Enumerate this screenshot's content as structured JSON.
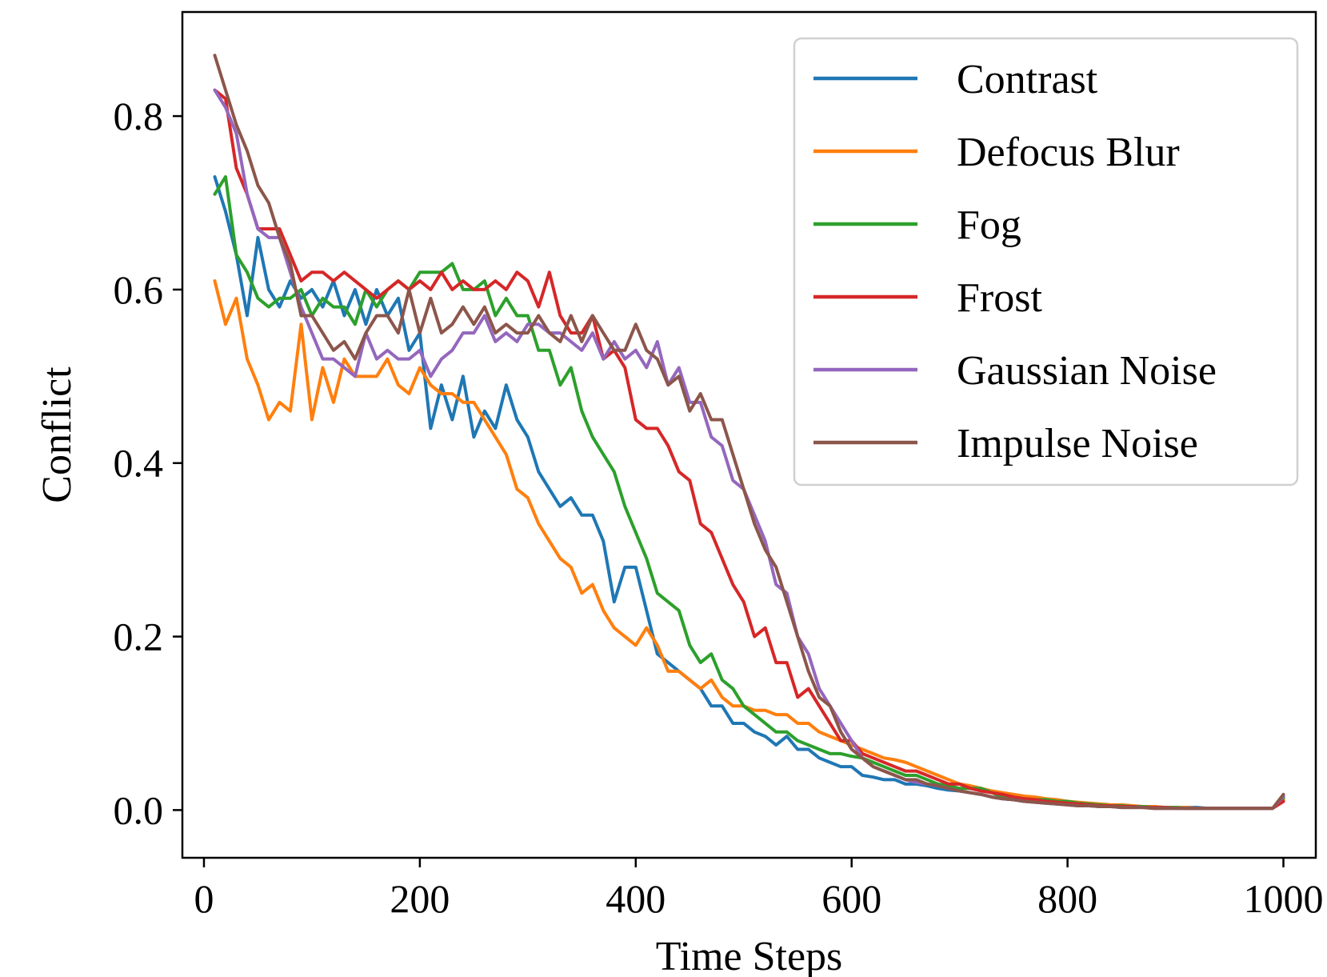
{
  "chart_data": {
    "type": "line",
    "title": "",
    "xlabel": "Time Steps",
    "ylabel": "Conflict",
    "xlim": [
      -20,
      1030
    ],
    "ylim": [
      -0.055,
      0.92
    ],
    "xticks": [
      0,
      200,
      400,
      600,
      800,
      1000
    ],
    "xtick_labels": [
      "0",
      "200",
      "400",
      "600",
      "800",
      "1000"
    ],
    "yticks": [
      0.0,
      0.2,
      0.4,
      0.6,
      0.8
    ],
    "ytick_labels": [
      "0.0",
      "0.2",
      "0.4",
      "0.6",
      "0.8"
    ],
    "grid": false,
    "legend_position": "top-right",
    "x": [
      10,
      20,
      30,
      40,
      50,
      60,
      70,
      80,
      90,
      100,
      110,
      120,
      130,
      140,
      150,
      160,
      170,
      180,
      190,
      200,
      210,
      220,
      230,
      240,
      250,
      260,
      270,
      280,
      290,
      300,
      310,
      320,
      330,
      340,
      350,
      360,
      370,
      380,
      390,
      400,
      410,
      420,
      430,
      440,
      450,
      460,
      470,
      480,
      490,
      500,
      510,
      520,
      530,
      540,
      550,
      560,
      570,
      580,
      590,
      600,
      610,
      620,
      630,
      640,
      650,
      660,
      670,
      680,
      690,
      700,
      710,
      720,
      730,
      740,
      750,
      760,
      770,
      780,
      790,
      800,
      810,
      820,
      830,
      840,
      850,
      860,
      870,
      880,
      890,
      900,
      910,
      920,
      930,
      940,
      950,
      960,
      970,
      980,
      990,
      1000
    ],
    "series": [
      {
        "name": "Contrast",
        "color": "#1f77b4",
        "values": [
          0.73,
          0.69,
          0.64,
          0.57,
          0.66,
          0.6,
          0.58,
          0.61,
          0.59,
          0.6,
          0.58,
          0.61,
          0.57,
          0.6,
          0.56,
          0.6,
          0.57,
          0.59,
          0.53,
          0.55,
          0.44,
          0.49,
          0.45,
          0.5,
          0.43,
          0.46,
          0.44,
          0.49,
          0.45,
          0.43,
          0.39,
          0.37,
          0.35,
          0.36,
          0.34,
          0.34,
          0.31,
          0.24,
          0.28,
          0.28,
          0.23,
          0.18,
          0.17,
          0.16,
          0.15,
          0.14,
          0.12,
          0.12,
          0.1,
          0.1,
          0.09,
          0.085,
          0.075,
          0.085,
          0.07,
          0.07,
          0.06,
          0.055,
          0.05,
          0.05,
          0.04,
          0.038,
          0.035,
          0.035,
          0.03,
          0.03,
          0.028,
          0.025,
          0.023,
          0.022,
          0.02,
          0.018,
          0.015,
          0.013,
          0.012,
          0.01,
          0.01,
          0.009,
          0.008,
          0.008,
          0.007,
          0.006,
          0.006,
          0.005,
          0.005,
          0.004,
          0.004,
          0.004,
          0.003,
          0.003,
          0.003,
          0.003,
          0.002,
          0.002,
          0.002,
          0.002,
          0.002,
          0.002,
          0.002,
          0.015
        ]
      },
      {
        "name": "Defocus Blur",
        "color": "#ff7f0e",
        "values": [
          0.61,
          0.56,
          0.59,
          0.52,
          0.49,
          0.45,
          0.47,
          0.46,
          0.56,
          0.45,
          0.51,
          0.47,
          0.52,
          0.5,
          0.5,
          0.5,
          0.52,
          0.49,
          0.48,
          0.51,
          0.49,
          0.48,
          0.48,
          0.47,
          0.47,
          0.45,
          0.43,
          0.41,
          0.37,
          0.36,
          0.33,
          0.31,
          0.29,
          0.28,
          0.25,
          0.26,
          0.23,
          0.21,
          0.2,
          0.19,
          0.21,
          0.19,
          0.16,
          0.16,
          0.15,
          0.14,
          0.15,
          0.13,
          0.12,
          0.12,
          0.115,
          0.115,
          0.11,
          0.11,
          0.1,
          0.1,
          0.09,
          0.085,
          0.08,
          0.075,
          0.07,
          0.065,
          0.06,
          0.058,
          0.055,
          0.05,
          0.045,
          0.04,
          0.035,
          0.03,
          0.028,
          0.025,
          0.022,
          0.02,
          0.018,
          0.016,
          0.015,
          0.013,
          0.012,
          0.01,
          0.009,
          0.008,
          0.007,
          0.006,
          0.006,
          0.005,
          0.004,
          0.004,
          0.003,
          0.003,
          0.003,
          0.002,
          0.002,
          0.002,
          0.002,
          0.002,
          0.002,
          0.002,
          0.002,
          0.012
        ]
      },
      {
        "name": "Fog",
        "color": "#2ca02c",
        "values": [
          0.71,
          0.73,
          0.64,
          0.62,
          0.59,
          0.58,
          0.59,
          0.59,
          0.6,
          0.57,
          0.59,
          0.58,
          0.58,
          0.56,
          0.6,
          0.58,
          0.6,
          0.61,
          0.6,
          0.62,
          0.62,
          0.62,
          0.63,
          0.6,
          0.6,
          0.61,
          0.57,
          0.59,
          0.57,
          0.57,
          0.53,
          0.53,
          0.49,
          0.51,
          0.46,
          0.43,
          0.41,
          0.39,
          0.35,
          0.32,
          0.29,
          0.25,
          0.24,
          0.23,
          0.19,
          0.17,
          0.18,
          0.15,
          0.14,
          0.12,
          0.11,
          0.1,
          0.09,
          0.09,
          0.08,
          0.075,
          0.07,
          0.065,
          0.065,
          0.062,
          0.06,
          0.055,
          0.05,
          0.045,
          0.04,
          0.04,
          0.035,
          0.03,
          0.028,
          0.025,
          0.025,
          0.025,
          0.02,
          0.015,
          0.014,
          0.013,
          0.012,
          0.012,
          0.01,
          0.01,
          0.008,
          0.007,
          0.006,
          0.005,
          0.005,
          0.004,
          0.004,
          0.003,
          0.003,
          0.003,
          0.002,
          0.002,
          0.002,
          0.002,
          0.002,
          0.002,
          0.002,
          0.002,
          0.002,
          0.014
        ]
      },
      {
        "name": "Frost",
        "color": "#d62728",
        "values": [
          0.83,
          0.82,
          0.74,
          0.71,
          0.67,
          0.67,
          0.67,
          0.64,
          0.61,
          0.62,
          0.62,
          0.61,
          0.62,
          0.61,
          0.6,
          0.59,
          0.6,
          0.61,
          0.6,
          0.61,
          0.6,
          0.62,
          0.6,
          0.61,
          0.6,
          0.6,
          0.61,
          0.6,
          0.62,
          0.61,
          0.58,
          0.62,
          0.57,
          0.55,
          0.55,
          0.57,
          0.52,
          0.53,
          0.51,
          0.45,
          0.44,
          0.44,
          0.42,
          0.39,
          0.38,
          0.33,
          0.32,
          0.29,
          0.26,
          0.24,
          0.2,
          0.21,
          0.17,
          0.17,
          0.13,
          0.14,
          0.12,
          0.1,
          0.08,
          0.08,
          0.065,
          0.06,
          0.055,
          0.05,
          0.045,
          0.045,
          0.04,
          0.035,
          0.03,
          0.03,
          0.025,
          0.022,
          0.02,
          0.018,
          0.015,
          0.013,
          0.012,
          0.01,
          0.009,
          0.008,
          0.007,
          0.006,
          0.005,
          0.005,
          0.004,
          0.004,
          0.003,
          0.003,
          0.003,
          0.002,
          0.002,
          0.002,
          0.002,
          0.002,
          0.002,
          0.002,
          0.002,
          0.002,
          0.002,
          0.01
        ]
      },
      {
        "name": "Gaussian Noise",
        "color": "#9467bd",
        "values": [
          0.83,
          0.81,
          0.78,
          0.71,
          0.67,
          0.66,
          0.66,
          0.62,
          0.58,
          0.55,
          0.52,
          0.52,
          0.51,
          0.5,
          0.55,
          0.52,
          0.53,
          0.52,
          0.52,
          0.53,
          0.5,
          0.52,
          0.53,
          0.55,
          0.55,
          0.57,
          0.54,
          0.55,
          0.54,
          0.56,
          0.56,
          0.55,
          0.55,
          0.54,
          0.53,
          0.55,
          0.52,
          0.54,
          0.52,
          0.53,
          0.51,
          0.54,
          0.49,
          0.51,
          0.47,
          0.47,
          0.43,
          0.42,
          0.38,
          0.37,
          0.34,
          0.31,
          0.26,
          0.25,
          0.2,
          0.18,
          0.14,
          0.12,
          0.1,
          0.08,
          0.06,
          0.05,
          0.045,
          0.04,
          0.035,
          0.032,
          0.03,
          0.028,
          0.025,
          0.022,
          0.02,
          0.018,
          0.015,
          0.013,
          0.012,
          0.01,
          0.009,
          0.008,
          0.007,
          0.006,
          0.005,
          0.005,
          0.004,
          0.004,
          0.003,
          0.003,
          0.003,
          0.002,
          0.002,
          0.002,
          0.002,
          0.002,
          0.002,
          0.002,
          0.002,
          0.002,
          0.002,
          0.002,
          0.002,
          0.016
        ]
      },
      {
        "name": "Impulse Noise",
        "color": "#8c564b",
        "values": [
          0.87,
          0.83,
          0.79,
          0.76,
          0.72,
          0.7,
          0.66,
          0.63,
          0.57,
          0.57,
          0.55,
          0.53,
          0.54,
          0.52,
          0.55,
          0.57,
          0.57,
          0.55,
          0.6,
          0.55,
          0.59,
          0.55,
          0.56,
          0.58,
          0.56,
          0.58,
          0.55,
          0.56,
          0.55,
          0.55,
          0.57,
          0.55,
          0.54,
          0.57,
          0.54,
          0.57,
          0.55,
          0.53,
          0.53,
          0.56,
          0.53,
          0.52,
          0.49,
          0.5,
          0.46,
          0.48,
          0.45,
          0.45,
          0.41,
          0.37,
          0.33,
          0.3,
          0.28,
          0.24,
          0.2,
          0.16,
          0.13,
          0.12,
          0.09,
          0.07,
          0.06,
          0.05,
          0.045,
          0.04,
          0.035,
          0.035,
          0.03,
          0.028,
          0.025,
          0.022,
          0.02,
          0.018,
          0.015,
          0.013,
          0.012,
          0.01,
          0.009,
          0.008,
          0.007,
          0.006,
          0.005,
          0.005,
          0.004,
          0.004,
          0.003,
          0.003,
          0.003,
          0.002,
          0.002,
          0.002,
          0.002,
          0.002,
          0.002,
          0.002,
          0.002,
          0.002,
          0.002,
          0.002,
          0.002,
          0.018
        ]
      }
    ]
  }
}
